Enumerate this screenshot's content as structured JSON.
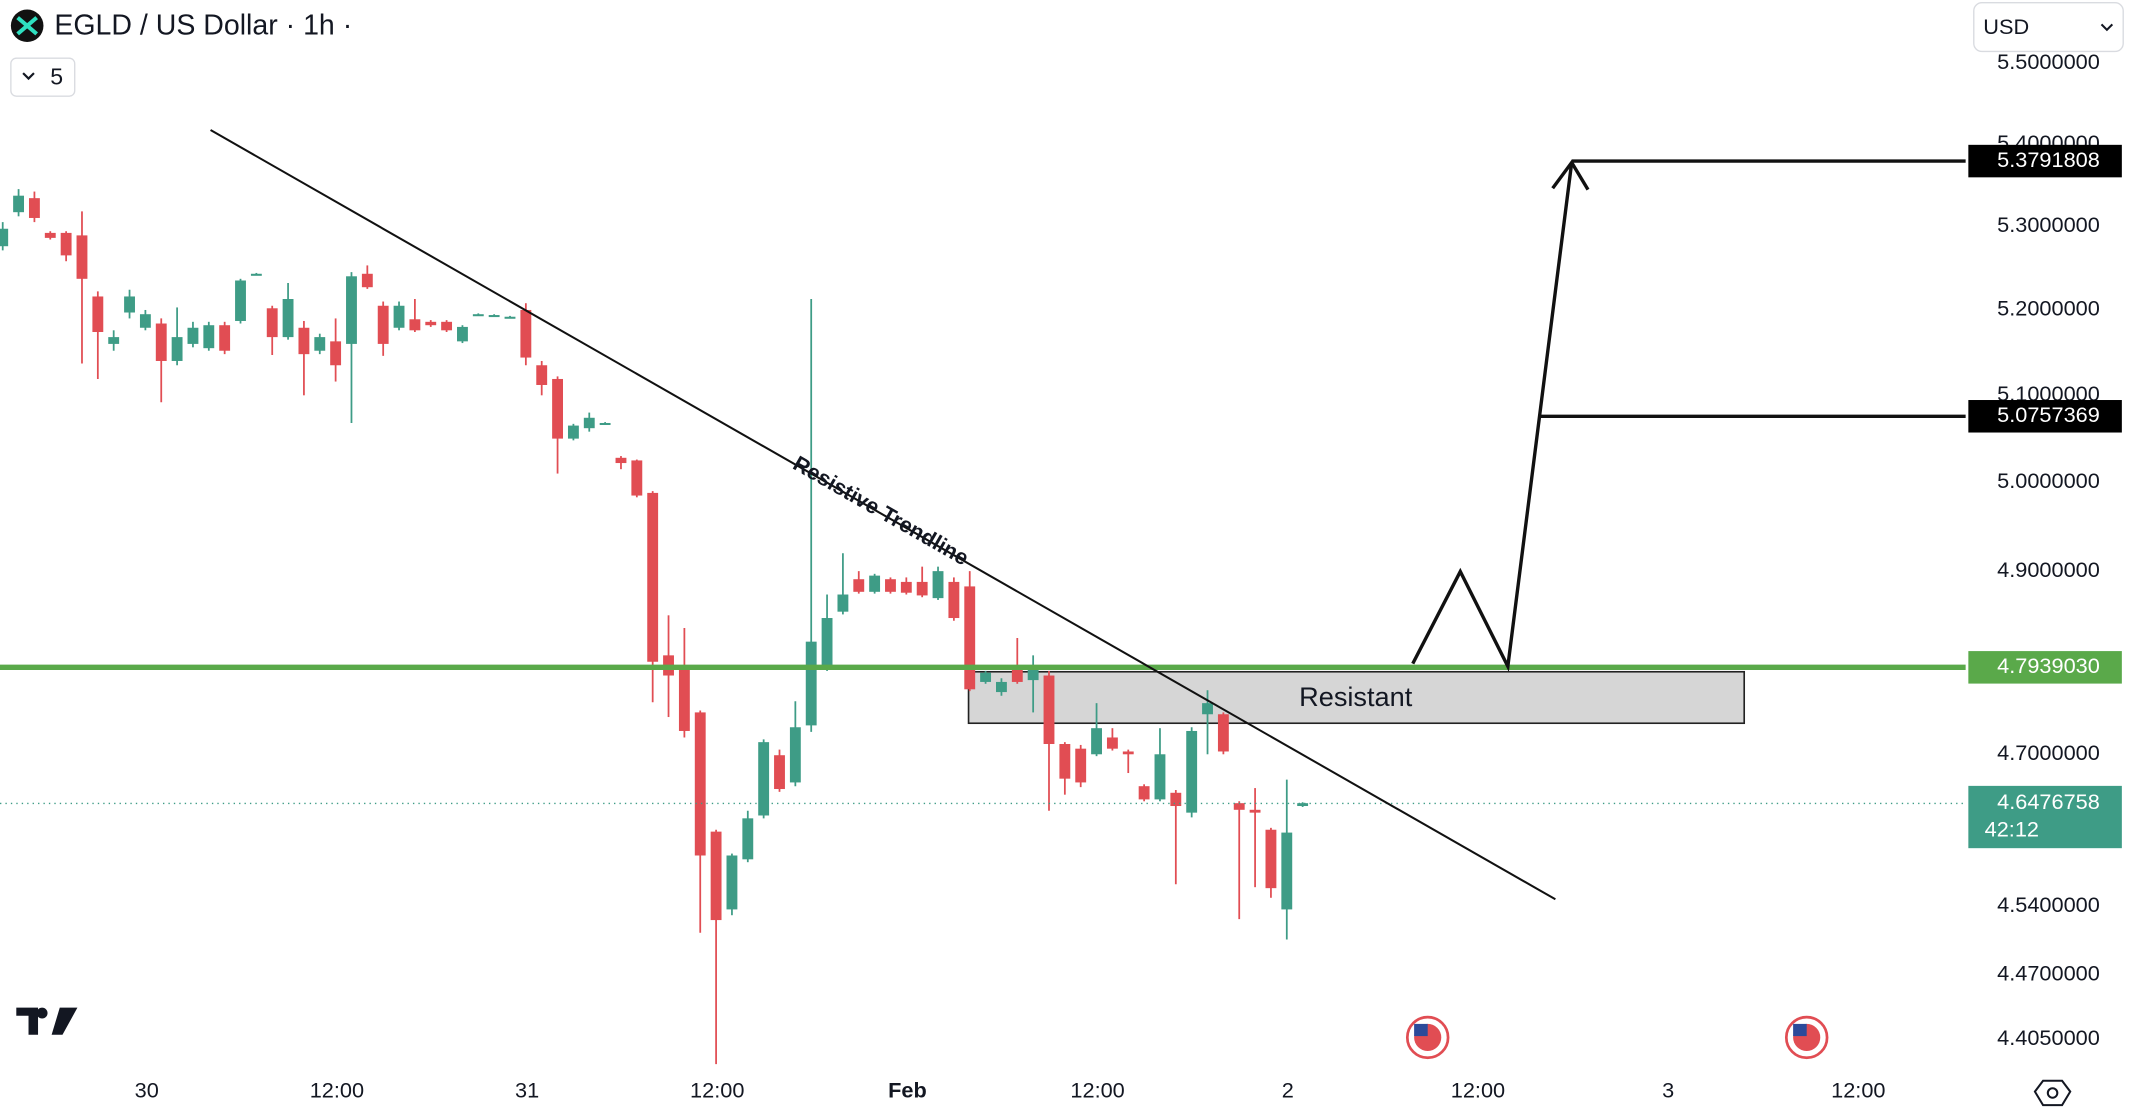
{
  "chart_data": {
    "type": "candlestick",
    "title": "EGLD / US Dollar · 1h ·",
    "interval_count": "5",
    "currency": "USD",
    "log_scale": true,
    "up_color": "#3e9c86",
    "down_color": "#e14d53",
    "open": [
      5.276,
      5.317,
      5.334,
      5.292,
      5.292,
      5.289,
      5.216,
      5.16,
      5.197,
      5.179,
      5.184,
      5.14,
      5.16,
      5.155,
      5.182,
      5.187,
      5.243,
      5.202,
      5.168,
      5.179,
      5.152,
      5.163,
      5.16,
      5.243,
      5.205,
      5.179,
      5.189,
      5.186,
      5.186,
      5.163,
      5.195,
      5.194,
      5.192,
      5.2,
      5.135,
      5.119,
      5.05,
      5.062,
      5.068,
      5.028,
      5.025,
      4.988,
      4.807,
      4.793,
      4.745,
      4.618,
      4.537,
      4.589,
      4.635,
      4.699,
      4.67,
      4.731,
      4.793,
      4.855,
      4.891,
      4.877,
      4.891,
      4.888,
      4.888,
      4.87,
      4.888,
      4.883,
      4.778,
      4.767,
      4.793,
      4.78,
      4.785,
      4.711,
      4.706,
      4.7,
      4.718,
      4.703,
      4.666,
      4.652,
      4.659,
      4.638,
      4.743,
      4.743,
      4.648,
      4.641,
      4.62,
      4.537,
      4.645
    ],
    "high": [
      5.305,
      5.345,
      5.342,
      5.294,
      5.294,
      5.318,
      5.222,
      5.176,
      5.224,
      5.2,
      5.19,
      5.203,
      5.186,
      5.186,
      5.186,
      5.237,
      5.244,
      5.205,
      5.232,
      5.187,
      5.172,
      5.19,
      5.245,
      5.253,
      5.21,
      5.21,
      5.213,
      5.188,
      5.188,
      5.182,
      5.196,
      5.195,
      5.193,
      5.208,
      5.14,
      5.122,
      5.067,
      5.08,
      5.069,
      5.03,
      5.026,
      4.99,
      4.851,
      4.837,
      4.747,
      4.62,
      4.595,
      4.64,
      4.716,
      4.705,
      4.757,
      5.213,
      4.874,
      4.92,
      4.9,
      4.897,
      4.893,
      4.893,
      4.905,
      4.905,
      4.893,
      4.9,
      4.79,
      4.782,
      4.826,
      4.807,
      4.79,
      4.713,
      4.71,
      4.755,
      4.728,
      4.705,
      4.668,
      4.728,
      4.662,
      4.729,
      4.769,
      4.745,
      4.65,
      4.664,
      4.622,
      4.673,
      4.649
    ],
    "low": [
      5.271,
      5.312,
      5.305,
      5.284,
      5.258,
      5.137,
      5.119,
      5.152,
      5.19,
      5.176,
      5.092,
      5.135,
      5.156,
      5.152,
      5.148,
      5.184,
      5.242,
      5.147,
      5.165,
      5.1,
      5.148,
      5.116,
      5.068,
      5.225,
      5.146,
      5.176,
      5.174,
      5.18,
      5.174,
      5.161,
      5.194,
      5.193,
      5.191,
      5.135,
      5.1,
      5.01,
      5.048,
      5.058,
      5.067,
      5.015,
      4.983,
      4.756,
      4.74,
      4.718,
      4.513,
      4.38,
      4.531,
      4.586,
      4.632,
      4.66,
      4.666,
      4.724,
      4.79,
      4.852,
      4.875,
      4.875,
      4.875,
      4.874,
      4.871,
      4.868,
      4.845,
      4.768,
      4.776,
      4.763,
      4.776,
      4.745,
      4.64,
      4.657,
      4.665,
      4.698,
      4.704,
      4.68,
      4.65,
      4.65,
      4.563,
      4.633,
      4.7,
      4.7,
      4.527,
      4.56,
      4.549,
      4.506,
      4.644
    ],
    "close": [
      5.297,
      5.337,
      5.31,
      5.286,
      5.265,
      5.237,
      5.174,
      5.168,
      5.216,
      5.195,
      5.14,
      5.168,
      5.179,
      5.182,
      5.152,
      5.235,
      5.243,
      5.168,
      5.213,
      5.148,
      5.168,
      5.135,
      5.24,
      5.227,
      5.16,
      5.205,
      5.176,
      5.182,
      5.176,
      5.18,
      5.195,
      5.194,
      5.192,
      5.144,
      5.112,
      5.05,
      5.065,
      5.074,
      5.068,
      5.022,
      4.985,
      4.8,
      4.785,
      4.725,
      4.593,
      4.526,
      4.593,
      4.632,
      4.713,
      4.663,
      4.729,
      4.822,
      4.848,
      4.874,
      4.877,
      4.895,
      4.877,
      4.876,
      4.873,
      4.9,
      4.848,
      4.77,
      4.788,
      4.778,
      4.778,
      4.796,
      4.711,
      4.674,
      4.67,
      4.728,
      4.706,
      4.7,
      4.652,
      4.7,
      4.645,
      4.725,
      4.755,
      4.703,
      4.641,
      4.638,
      4.559,
      4.617,
      4.648
    ],
    "ylim": [
      4.381,
      5.58
    ],
    "yticks": [
      {
        "value": 5.5,
        "label": "5.5000000"
      },
      {
        "value": 5.4,
        "label": "5.4000000"
      },
      {
        "value": 5.3,
        "label": "5.3000000"
      },
      {
        "value": 5.2,
        "label": "5.2000000"
      },
      {
        "value": 5.1,
        "label": "5.1000000"
      },
      {
        "value": 5.0,
        "label": "5.0000000"
      },
      {
        "value": 4.9,
        "label": "4.9000000"
      },
      {
        "value": 4.7,
        "label": "4.7000000"
      },
      {
        "value": 4.54,
        "label": "4.5400000"
      },
      {
        "value": 4.47,
        "label": "4.4700000"
      },
      {
        "value": 4.405,
        "label": "4.4050000"
      }
    ],
    "xtick_labels": [
      "30",
      "12:00",
      "31",
      "12:00",
      "Feb",
      "12:00",
      "2",
      "12:00",
      "3",
      "12:00"
    ],
    "target_levels": [
      {
        "value": 5.3791808,
        "label": "5.3791808"
      },
      {
        "value": 5.0757369,
        "label": "5.0757369"
      }
    ],
    "support_level": {
      "value": 4.793903,
      "label": "4.7939030",
      "color": "#5aa94a"
    },
    "last_price": {
      "value": 4.6476758,
      "label": "4.6476758",
      "countdown": "42:12"
    },
    "trendline_label": "Resistive Trendline",
    "zone_label": "Resistant"
  }
}
